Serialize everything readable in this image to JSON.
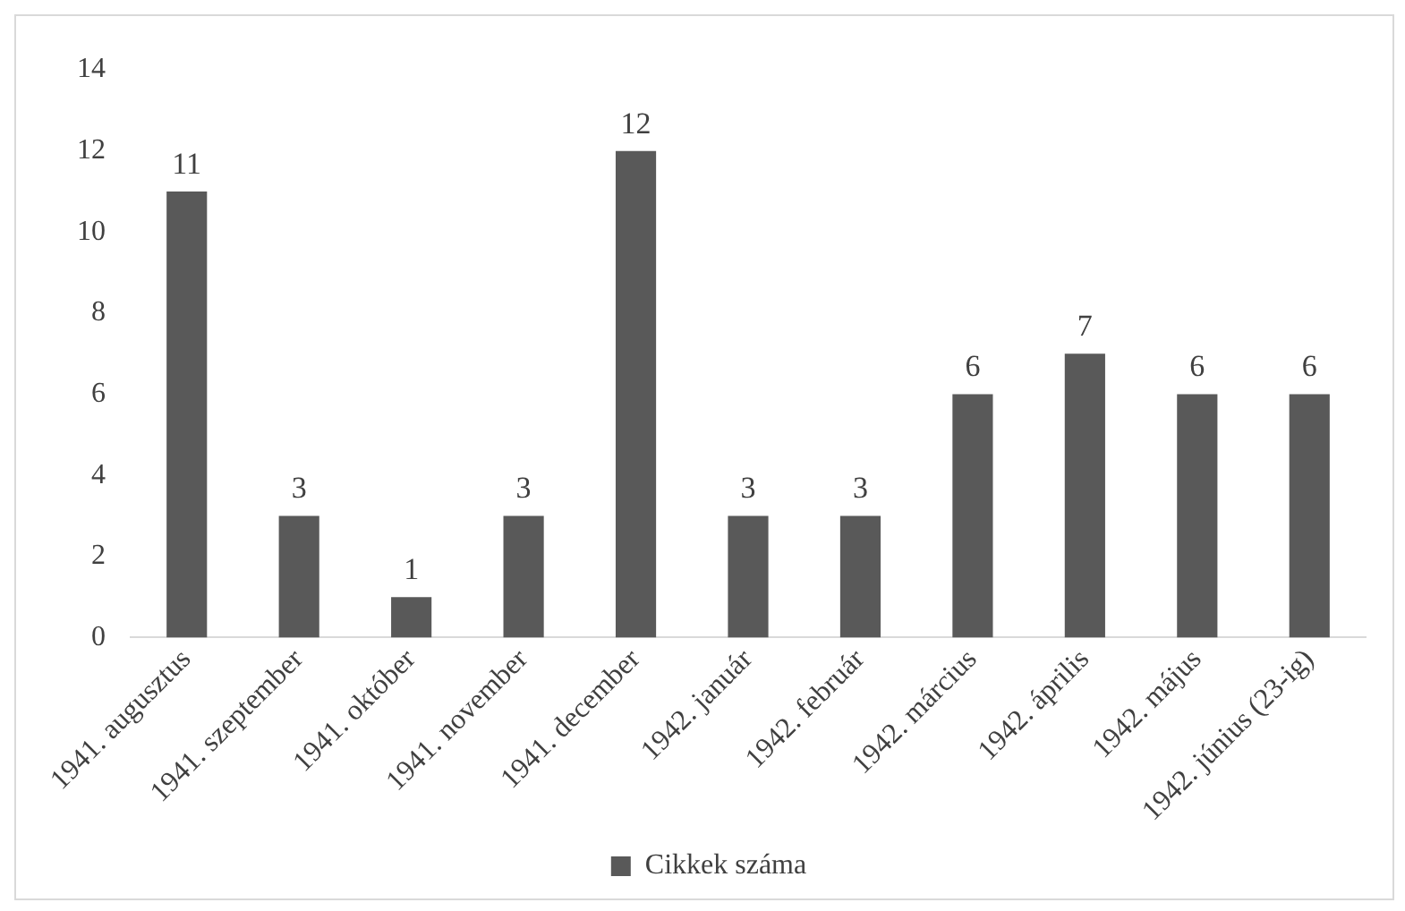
{
  "chart_data": {
    "type": "bar",
    "categories": [
      "1941. augusztus",
      "1941. szeptember",
      "1941. október",
      "1941. november",
      "1941. december",
      "1942. január",
      "1942. február",
      "1942. március",
      "1942. április",
      "1942. május",
      "1942. június (23-ig)"
    ],
    "series": [
      {
        "name": "Cikkek száma",
        "color": "#595959",
        "values": [
          11,
          3,
          1,
          3,
          12,
          3,
          3,
          6,
          7,
          6,
          6
        ]
      }
    ],
    "ylim": [
      0,
      14
    ],
    "yticks": [
      0,
      2,
      4,
      6,
      8,
      10,
      12,
      14
    ],
    "grid": false,
    "legend": "bottom",
    "data_labels": true
  }
}
